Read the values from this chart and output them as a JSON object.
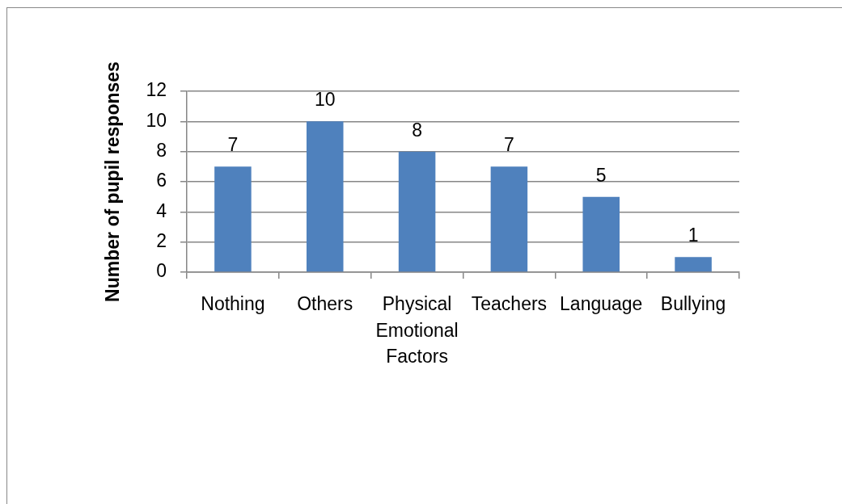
{
  "chart_data": {
    "type": "bar",
    "ylabel": "Number of pupil responses",
    "categories": [
      "Nothing",
      "Others",
      "Physical Emotional Factors",
      "Teachers",
      "Language",
      "Bullying"
    ],
    "values": [
      7,
      10,
      8,
      7,
      5,
      1
    ],
    "color": "#4f81bd",
    "ylim": [
      0,
      12
    ],
    "yticks": [
      0,
      2,
      4,
      6,
      8,
      10,
      12
    ],
    "grid": "y",
    "data_labels": true
  }
}
